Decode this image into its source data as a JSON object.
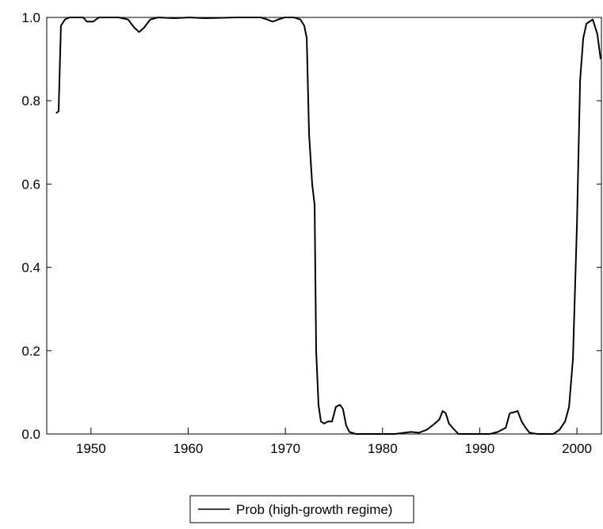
{
  "chart_data": {
    "type": "line",
    "x": [
      1946.42,
      1946.67,
      1946.91,
      1947.32,
      1947.8,
      1949.19,
      1949.59,
      1950.24,
      1950.81,
      1952.85,
      1953.82,
      1954.47,
      1954.96,
      1955.45,
      1956.1,
      1956.91,
      1958.54,
      1960.16,
      1961.79,
      1965.04,
      1967.48,
      1968.13,
      1968.7,
      1969.27,
      1969.92,
      1970.89,
      1971.54,
      1971.95,
      1972.2,
      1972.44,
      1972.76,
      1973.01,
      1973.17,
      1973.41,
      1973.66,
      1973.98,
      1974.39,
      1974.8,
      1975.2,
      1975.61,
      1975.93,
      1976.26,
      1976.59,
      1977.24,
      1981.3,
      1982.93,
      1983.74,
      1984.55,
      1985.37,
      1985.85,
      1986.18,
      1986.5,
      1986.83,
      1987.4,
      1987.8,
      1991.06,
      1991.87,
      1992.68,
      1993.09,
      1993.5,
      1993.9,
      1994.31,
      1994.72,
      1995.12,
      1995.93,
      1997.56,
      1998.21,
      1998.78,
      1999.19,
      1999.59,
      2000.0,
      2000.33,
      2000.65,
      2000.98,
      2001.63,
      2002.1,
      2002.44
    ],
    "series": [
      {
        "name": "Prob (high-growth regime)",
        "color": "#000000",
        "values": [
          0.77,
          0.775,
          0.98,
          0.995,
          1.0,
          1.0,
          0.99,
          0.99,
          1.0,
          1.0,
          0.995,
          0.975,
          0.965,
          0.975,
          0.995,
          1.0,
          0.998,
          1.0,
          0.998,
          1.0,
          1.0,
          0.995,
          0.99,
          0.995,
          1.0,
          1.0,
          0.995,
          0.98,
          0.95,
          0.72,
          0.6,
          0.55,
          0.2,
          0.07,
          0.03,
          0.025,
          0.03,
          0.03,
          0.065,
          0.07,
          0.06,
          0.02,
          0.005,
          0.0,
          0.0,
          0.005,
          0.003,
          0.01,
          0.025,
          0.035,
          0.055,
          0.05,
          0.025,
          0.01,
          0.0,
          0.0,
          0.005,
          0.015,
          0.05,
          0.052,
          0.055,
          0.03,
          0.015,
          0.003,
          0.0,
          0.0,
          0.01,
          0.03,
          0.065,
          0.18,
          0.5,
          0.85,
          0.95,
          0.985,
          0.995,
          0.96,
          0.9
        ]
      }
    ],
    "xlim": [
      1945.45,
      2002.52
    ],
    "xticks": [
      1950,
      1960,
      1970,
      1980,
      1990,
      2000
    ],
    "ylim": [
      0,
      1
    ],
    "yticks": [
      {
        "value": 0,
        "label": "0.0"
      },
      0.2,
      0.4,
      0.6,
      0.8,
      {
        "value": 1,
        "label": "1.0"
      }
    ],
    "legend": "bottom"
  }
}
